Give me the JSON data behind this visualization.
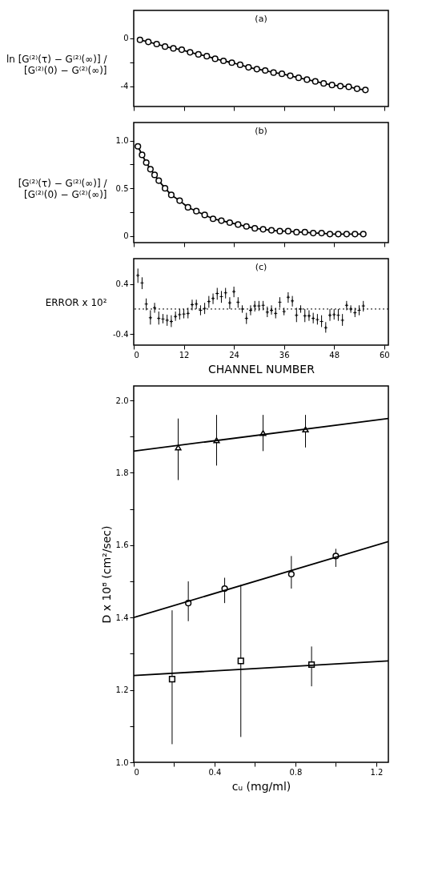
{
  "chart_data": [
    {
      "type": "line",
      "title": "(a)",
      "ylabel": "ln [G⁽²⁾(τ) − G⁽²⁾(∞)] / [G⁽²⁾(0) − G⁽²⁾(∞)]",
      "xlim": [
        0,
        61
      ],
      "xticks": [
        0,
        12,
        24,
        36,
        48,
        60
      ],
      "ylim": [
        -5.7,
        2.3
      ],
      "yticks": [
        -4,
        {
          "value": -2,
          "label": null
        },
        0
      ],
      "tick_labels": "y",
      "marker": "circle",
      "x": [
        1.5,
        3.5,
        5.5,
        7.5,
        9.5,
        11.5,
        13.5,
        15.5,
        17.5,
        19.5,
        21.5,
        23.5,
        25.5,
        27.5,
        29.5,
        31.5,
        33.5,
        35.5,
        37.5,
        39.5,
        41.5,
        43.5,
        45.5,
        47.5,
        49.5,
        51.5,
        53.5,
        55.5
      ],
      "series": [
        {
          "color": "#000000",
          "values": [
            -0.15,
            -0.32,
            -0.5,
            -0.71,
            -0.86,
            -0.97,
            -1.19,
            -1.36,
            -1.51,
            -1.73,
            -1.9,
            -2.05,
            -2.23,
            -2.44,
            -2.59,
            -2.7,
            -2.88,
            -2.98,
            -3.14,
            -3.31,
            -3.46,
            -3.61,
            -3.78,
            -3.91,
            -4.0,
            -4.06,
            -4.22,
            -4.32
          ]
        }
      ]
    },
    {
      "type": "line",
      "title": "(b)",
      "ylabel": "[G⁽²⁾(τ) − G⁽²⁾(∞)] / [G⁽²⁾(0) − G⁽²⁾(∞)]",
      "xlim": [
        0,
        61
      ],
      "xticks": [
        0,
        12,
        24,
        36,
        48,
        60
      ],
      "ylim": [
        -0.07,
        1.19
      ],
      "yticks": [
        0,
        {
          "value": 0.25,
          "label": null
        },
        0.5,
        {
          "value": 0.75,
          "label": null
        },
        {
          "value": 1,
          "label": "1.0"
        }
      ],
      "tick_labels": "y",
      "marker": "circle",
      "x": [
        1,
        2,
        3,
        4,
        5,
        6,
        7.5,
        9,
        11,
        13,
        15,
        17,
        19,
        21,
        23,
        25,
        27,
        29,
        31,
        33,
        35,
        37,
        39,
        41,
        43,
        45,
        47,
        49,
        51,
        53,
        55
      ],
      "series": [
        {
          "color": "#000000",
          "values": [
            0.94,
            0.85,
            0.77,
            0.7,
            0.64,
            0.58,
            0.5,
            0.43,
            0.37,
            0.3,
            0.26,
            0.22,
            0.18,
            0.16,
            0.14,
            0.12,
            0.1,
            0.08,
            0.07,
            0.06,
            0.05,
            0.05,
            0.04,
            0.04,
            0.03,
            0.03,
            0.02,
            0.02,
            0.02,
            0.02,
            0.02
          ]
        }
      ]
    },
    {
      "type": "scatter",
      "title": "(c)",
      "xlabel": "CHANNEL NUMBER",
      "ylabel": "ERROR x 10²",
      "xlim": [
        0,
        61
      ],
      "xticks": [
        0,
        12,
        24,
        36,
        48,
        60
      ],
      "ylim": [
        -0.58,
        0.81
      ],
      "yticks": [
        -0.4,
        0.4
      ],
      "marker": "cross",
      "ref_lines": [
        {
          "axis": "y",
          "value": 0,
          "line_style": "dotted"
        }
      ],
      "x": [
        1,
        2,
        3,
        4,
        5,
        6,
        7,
        8,
        9,
        10,
        11,
        12,
        13,
        14,
        15,
        16,
        17,
        18,
        19,
        20,
        21,
        22,
        23,
        24,
        25,
        26,
        27,
        28,
        29,
        30,
        31,
        32,
        33,
        34,
        35,
        36,
        37,
        38,
        39,
        40,
        41,
        42,
        43,
        44,
        45,
        46,
        47,
        48,
        49,
        50,
        51,
        52,
        53,
        54,
        55
      ],
      "series": [
        {
          "color": "#000000",
          "values": [
            0.54,
            0.42,
            0.08,
            -0.14,
            0.02,
            -0.15,
            -0.16,
            -0.18,
            -0.2,
            -0.12,
            -0.09,
            -0.08,
            -0.07,
            0.07,
            0.08,
            -0.02,
            0.01,
            0.12,
            0.17,
            0.25,
            0.2,
            0.26,
            0.1,
            0.28,
            0.11,
            0,
            -0.15,
            -0.02,
            0.05,
            0.05,
            0.06,
            -0.05,
            -0.02,
            -0.07,
            0.11,
            -0.04,
            0.19,
            0.13,
            -0.1,
            0,
            -0.11,
            -0.11,
            -0.15,
            -0.17,
            -0.2,
            -0.3,
            -0.1,
            -0.09,
            -0.1,
            -0.18,
            0.06,
            0,
            -0.06,
            -0.02,
            0.05
          ],
          "errors": [
            [
              0.42,
              0.65
            ],
            [
              0.32,
              0.51
            ],
            [
              -0.02,
              0.17
            ],
            [
              -0.25,
              -0.02
            ],
            [
              -0.06,
              0.1
            ],
            [
              -0.25,
              -0.04
            ],
            [
              -0.23,
              -0.08
            ],
            [
              -0.27,
              -0.09
            ],
            [
              -0.29,
              -0.1
            ],
            [
              -0.19,
              -0.04
            ],
            [
              -0.17,
              0
            ],
            [
              -0.15,
              0
            ],
            [
              -0.15,
              0.02
            ],
            [
              -0.02,
              0.15
            ],
            [
              0,
              0.15
            ],
            [
              -0.1,
              0.06
            ],
            [
              -0.08,
              0.1
            ],
            [
              0.02,
              0.21
            ],
            [
              0.08,
              0.25
            ],
            [
              0.15,
              0.34
            ],
            [
              0.1,
              0.29
            ],
            [
              0.17,
              0.34
            ],
            [
              0,
              0.19
            ],
            [
              0.19,
              0.36
            ],
            [
              0.02,
              0.19
            ],
            [
              -0.06,
              0.06
            ],
            [
              -0.24,
              -0.06
            ],
            [
              -0.1,
              0.06
            ],
            [
              -0.04,
              0.13
            ],
            [
              -0.03,
              0.13
            ],
            [
              -0.02,
              0.13
            ],
            [
              -0.13,
              0.04
            ],
            [
              -0.09,
              0.06
            ],
            [
              -0.15,
              0.02
            ],
            [
              0.02,
              0.19
            ],
            [
              -0.1,
              0.02
            ],
            [
              0.1,
              0.27
            ],
            [
              0.04,
              0.21
            ],
            [
              -0.21,
              0.02
            ],
            [
              -0.06,
              0.06
            ],
            [
              -0.21,
              0
            ],
            [
              -0.19,
              -0.02
            ],
            [
              -0.23,
              -0.06
            ],
            [
              -0.25,
              -0.08
            ],
            [
              -0.29,
              -0.1
            ],
            [
              -0.38,
              -0.21
            ],
            [
              -0.19,
              0
            ],
            [
              -0.17,
              0
            ],
            [
              -0.19,
              0
            ],
            [
              -0.27,
              -0.08
            ],
            [
              -0.02,
              0.13
            ],
            [
              -0.06,
              0.06
            ],
            [
              -0.13,
              0.02
            ],
            [
              -0.1,
              0.06
            ],
            [
              -0.04,
              0.13
            ]
          ]
        }
      ]
    },
    {
      "type": "scatter",
      "xlabel": "cᵤ (mg/ml)",
      "ylabel": "D x 10⁸ (cm²/sec)",
      "xlim": [
        0,
        1.26
      ],
      "xticks": [
        0,
        {
          "value": 0.2,
          "label": null
        },
        0.4,
        {
          "value": 0.6,
          "label": null
        },
        0.8,
        {
          "value": 1,
          "label": null
        },
        1.2
      ],
      "ylim": [
        1,
        2.04
      ],
      "yticks": [
        {
          "value": 1,
          "label": "1.0"
        },
        {
          "value": 1.1,
          "label": null
        },
        1.2,
        {
          "value": 1.3,
          "label": null
        },
        1.4,
        {
          "value": 1.5,
          "label": null
        },
        1.6,
        {
          "value": 1.7,
          "label": null
        },
        1.8,
        {
          "value": 1.9,
          "label": null
        },
        {
          "value": 2,
          "label": "2.0"
        }
      ],
      "series": [
        {
          "color": "#000000",
          "marker": "triangle",
          "x": [
            0.22,
            0.41,
            0.64,
            0.85
          ],
          "values": [
            1.87,
            1.89,
            1.91,
            1.92
          ],
          "errors": [
            [
              1.78,
              1.95
            ],
            [
              1.82,
              1.96
            ],
            [
              1.86,
              1.96
            ],
            [
              1.87,
              1.96
            ]
          ]
        },
        {
          "color": "#000000",
          "marker": "circle",
          "x": [
            0.27,
            0.45,
            0.78,
            1.0
          ],
          "values": [
            1.44,
            1.48,
            1.52,
            1.57
          ],
          "errors": [
            [
              1.39,
              1.5
            ],
            [
              1.44,
              1.51
            ],
            [
              1.48,
              1.57
            ],
            [
              1.54,
              1.59
            ]
          ]
        },
        {
          "color": "#000000",
          "marker": "square",
          "x": [
            0.19,
            0.53,
            0.88
          ],
          "values": [
            1.23,
            1.28,
            1.27
          ],
          "errors": [
            [
              1.05,
              1.42
            ],
            [
              1.07,
              1.49
            ],
            [
              1.21,
              1.32
            ]
          ]
        },
        {
          "type": "line",
          "color": "#000000",
          "marker": "none",
          "x": [
            0,
            1.26
          ],
          "values": [
            1.86,
            1.95
          ]
        },
        {
          "type": "line",
          "color": "#000000",
          "marker": "none",
          "x": [
            0,
            1.26
          ],
          "values": [
            1.4,
            1.61
          ]
        },
        {
          "type": "line",
          "color": "#000000",
          "marker": "none",
          "x": [
            0,
            1.26
          ],
          "values": [
            1.24,
            1.28
          ]
        }
      ]
    }
  ]
}
